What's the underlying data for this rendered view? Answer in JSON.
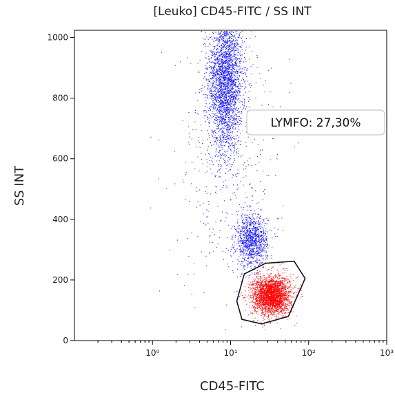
{
  "chart_data": {
    "type": "scatter",
    "title": "[Leuko] CD45-FITC / SS INT",
    "xlabel": "CD45-FITC",
    "ylabel": "SS INT",
    "x_scale": "log",
    "xlim": [
      0.1,
      1000
    ],
    "ylim": [
      0,
      1024
    ],
    "x_ticks": [
      {
        "value": 1,
        "label": "10⁰"
      },
      {
        "value": 10,
        "label": "10¹"
      },
      {
        "value": 100,
        "label": "10²"
      },
      {
        "value": 1000,
        "label": "10³"
      }
    ],
    "y_ticks": [
      0,
      200,
      400,
      600,
      800,
      1000
    ],
    "grid": false,
    "series": [
      {
        "color": "#1a1aff",
        "clusters": [
          {
            "x_center": 8.5,
            "y_center": 860,
            "x_spread_log": 0.11,
            "y_spread": 120,
            "points": 3000
          },
          {
            "x_center": 18.5,
            "y_center": 330,
            "x_spread_log": 0.1,
            "y_spread": 42,
            "points": 1100
          },
          {
            "x_center": 10,
            "y_center": 600,
            "x_spread_log": 0.35,
            "y_spread": 220,
            "points": 450
          }
        ]
      },
      {
        "color": "#ff0000",
        "gate": "LYMFO",
        "clusters": [
          {
            "x_center": 33,
            "y_center": 150,
            "x_spread_log": 0.12,
            "y_spread": 32,
            "points": 2600
          }
        ]
      }
    ],
    "gates": [
      {
        "name": "LYMFO",
        "label": "LYMFO: 27,30%",
        "polygon": [
          [
            15,
            220
          ],
          [
            28,
            255
          ],
          [
            65,
            262
          ],
          [
            90,
            205
          ],
          [
            55,
            80
          ],
          [
            25,
            55
          ],
          [
            14,
            70
          ],
          [
            12,
            130
          ]
        ]
      }
    ]
  }
}
